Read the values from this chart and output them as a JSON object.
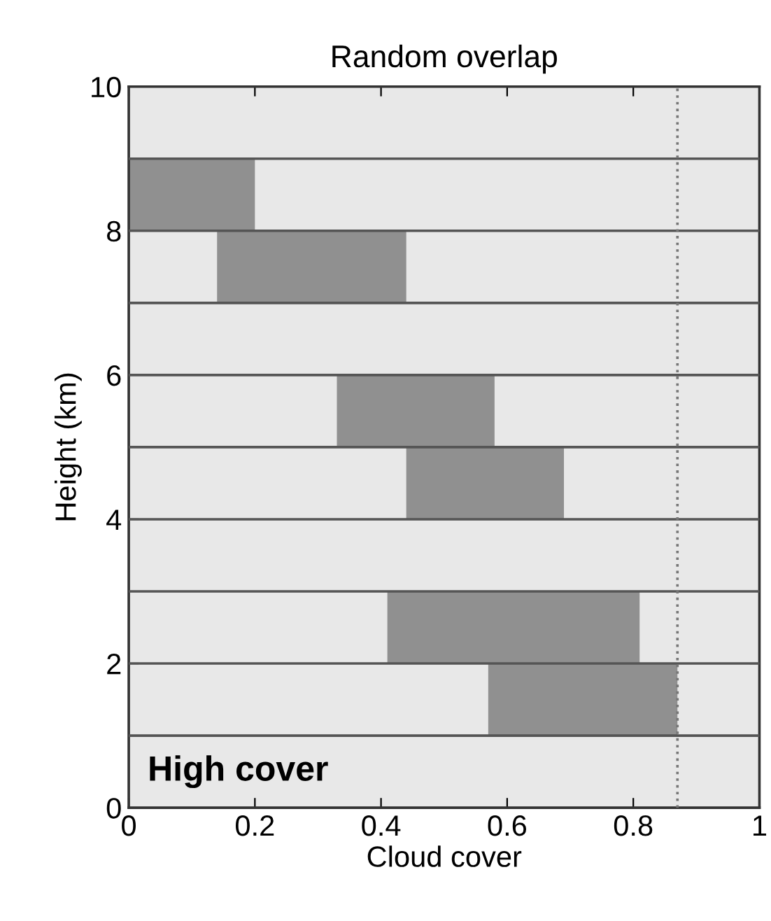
{
  "chart_data": {
    "type": "bar",
    "orientation": "horizontal",
    "title": "Random overlap",
    "xlabel": "Cloud cover",
    "ylabel": "Height (km)",
    "x": [
      1.5,
      2.5,
      4.5,
      5.5,
      7.5,
      8.5
    ],
    "values": [
      0.3,
      0.4,
      0.25,
      0.25,
      0.3,
      0.2
    ],
    "base": [
      0.57,
      0.41,
      0.44,
      0.33,
      0.14,
      0.0
    ],
    "color": "#909090",
    "xlim": [
      0,
      1
    ],
    "xticks": [
      0,
      0.2,
      0.4,
      0.6,
      0.8,
      1
    ],
    "ylim": [
      0,
      10
    ],
    "yticks": [
      0,
      2,
      4,
      6,
      8,
      10
    ],
    "ref_lines": [
      {
        "axis": "y",
        "value": 1,
        "color": "#555555"
      },
      {
        "axis": "y",
        "value": 2,
        "color": "#555555"
      },
      {
        "axis": "y",
        "value": 3,
        "color": "#555555"
      },
      {
        "axis": "y",
        "value": 4,
        "color": "#555555"
      },
      {
        "axis": "y",
        "value": 5,
        "color": "#555555"
      },
      {
        "axis": "y",
        "value": 6,
        "color": "#555555"
      },
      {
        "axis": "y",
        "value": 7,
        "color": "#555555"
      },
      {
        "axis": "y",
        "value": 8,
        "color": "#555555"
      },
      {
        "axis": "y",
        "value": 9,
        "color": "#555555"
      },
      {
        "axis": "x",
        "value": 0.87,
        "color": "#777777",
        "line_style": "dotted"
      }
    ],
    "annotations": [
      "High cover"
    ]
  }
}
